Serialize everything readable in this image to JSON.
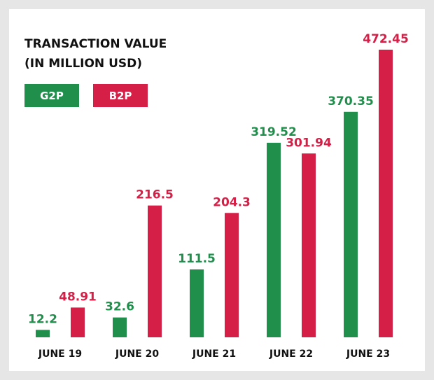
{
  "chart_data": {
    "type": "bar",
    "title": [
      "TRANSACTION VALUE",
      "(IN MILLION USD)"
    ],
    "categories": [
      "JUNE 19",
      "JUNE 20",
      "JUNE 21",
      "JUNE 22",
      "JUNE 23"
    ],
    "series": [
      {
        "name": "G2P",
        "color": "#1f8f4b",
        "values": [
          12.2,
          32.6,
          111.5,
          319.52,
          370.35
        ]
      },
      {
        "name": "B2P",
        "color": "#d51f46",
        "values": [
          48.91,
          216.5,
          204.3,
          301.94,
          472.45
        ]
      }
    ]
  }
}
